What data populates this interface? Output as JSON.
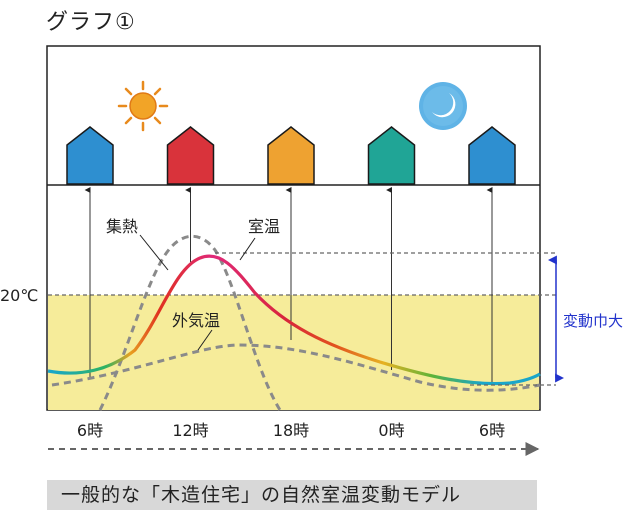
{
  "title": "グラフ①",
  "caption": "一般的な「木造住宅」の自然室温変動モデル",
  "chart_data": {
    "type": "line",
    "x_ticks": [
      "6時",
      "12時",
      "18時",
      "0時",
      "6時"
    ],
    "x_hours": [
      0,
      6,
      12,
      18,
      24
    ],
    "y_marker_label": "20℃",
    "annotations": {
      "heat_gain": "集熱",
      "room_temp": "室温",
      "outdoor_temp": "外気温",
      "range": "変動巾大"
    },
    "houses": [
      {
        "color": "#2e8fd0"
      },
      {
        "color": "#d9333b"
      },
      {
        "color": "#eea231"
      },
      {
        "color": "#20a596"
      },
      {
        "color": "#2e8fd0"
      }
    ],
    "colors": {
      "comfort_band": "#f6ec9a",
      "range_arrow": "#2233cc",
      "dashed": "#888888",
      "sun": "#f2a427",
      "moon": "#5fb3e6"
    }
  }
}
